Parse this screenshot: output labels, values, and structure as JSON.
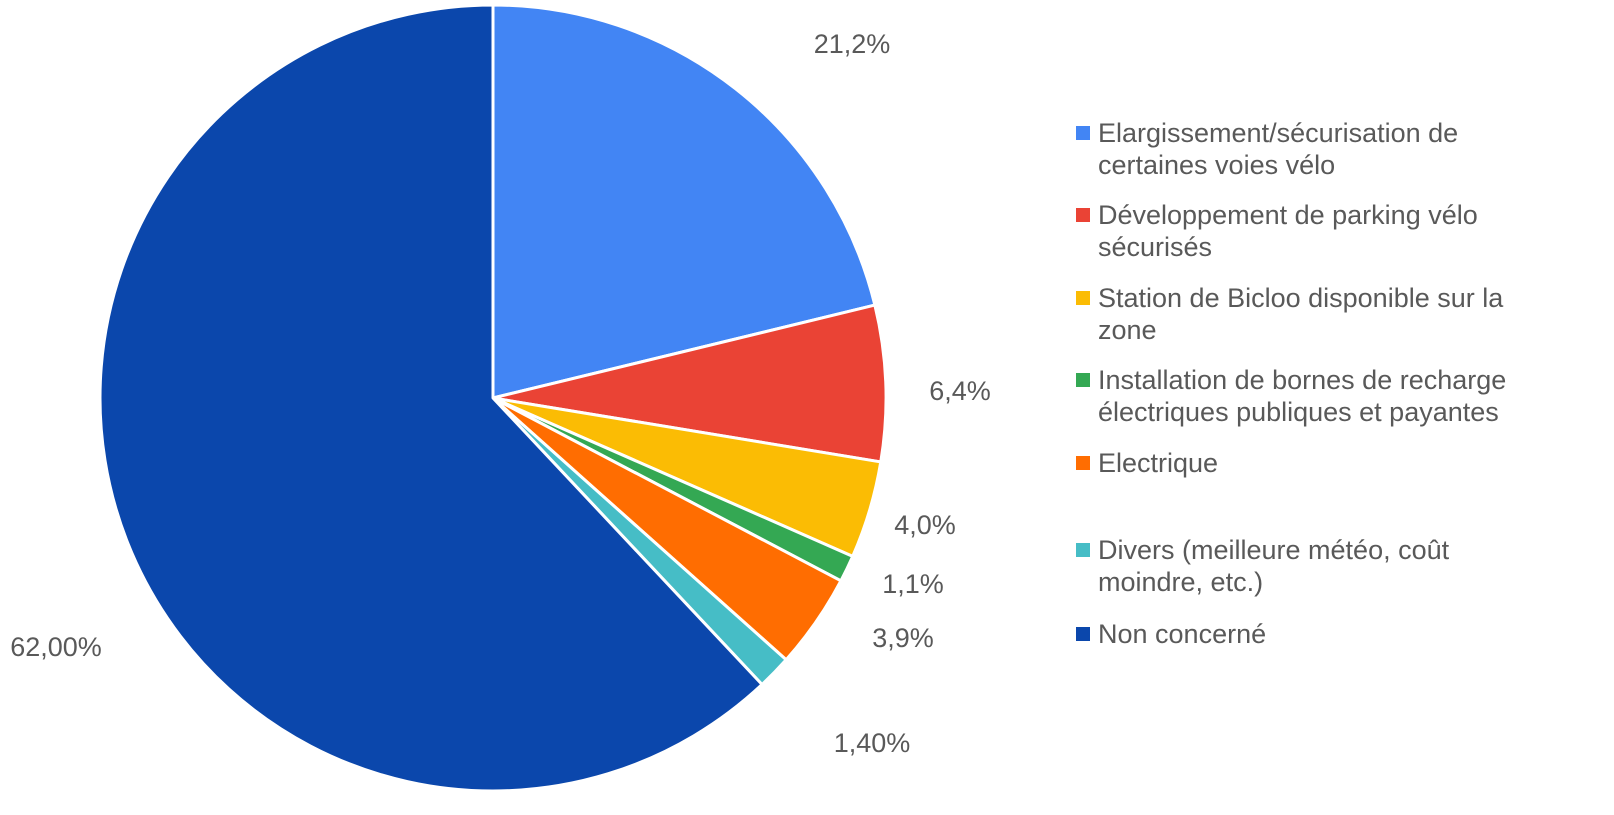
{
  "chart_data": {
    "type": "pie",
    "title": "",
    "legend_position": "right",
    "slices": [
      {
        "name": "Elargissement/sécurisation de certaines voies vélo",
        "legend_lines": [
          "Elargissement/sécurisation de",
          "certaines voies vélo"
        ],
        "value": 21.2,
        "label": "21,2%",
        "color": "#4285F4"
      },
      {
        "name": "Développement de parking vélo sécurisés",
        "legend_lines": [
          "Développement de parking vélo",
          "sécurisés"
        ],
        "value": 6.4,
        "label": "6,4%",
        "color": "#EA4335"
      },
      {
        "name": "Station de Bicloo disponible sur la zone",
        "legend_lines": [
          "Station de Bicloo disponible sur la",
          "zone"
        ],
        "value": 4.0,
        "label": "4,0%",
        "color": "#FBBC04"
      },
      {
        "name": "Installation de bornes de recharge électriques publiques et payantes",
        "legend_lines": [
          "Installation de bornes de recharge",
          "électriques publiques et payantes"
        ],
        "value": 1.1,
        "label": "1,1%",
        "color": "#34A853"
      },
      {
        "name": "Electrique",
        "legend_lines": [
          "Electrique"
        ],
        "value": 3.9,
        "label": "3,9%",
        "color": "#FF6D01"
      },
      {
        "name": "Divers (meilleure météo, coût moindre, etc.)",
        "legend_lines": [
          "Divers (meilleure météo, coût",
          "moindre, etc.)"
        ],
        "value": 1.4,
        "label": "1,40%",
        "color": "#46BDC6"
      },
      {
        "name": "Non concerné",
        "legend_lines": [
          "Non concerné"
        ],
        "value": 62.0,
        "label": "62,00%",
        "color": "#0B47AC"
      }
    ]
  }
}
